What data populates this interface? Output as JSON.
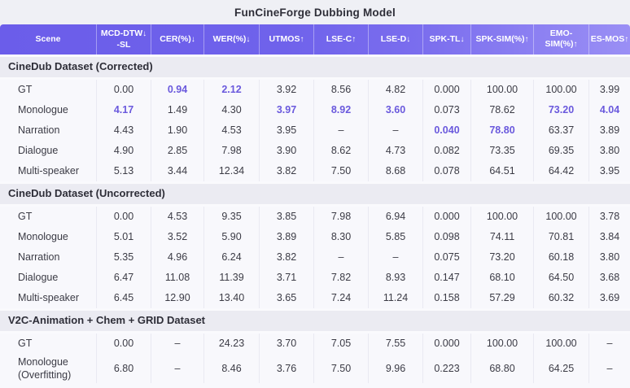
{
  "title": "FunCineForge Dubbing Model",
  "colors": {
    "accent_purple": "#6c5ce7",
    "header_gradient_start": "#6b5dea",
    "header_gradient_end": "#9a8ff5",
    "highlight_value": "#6a59dd",
    "body_text": "#3b3b45",
    "section_band": "#ebebf2",
    "row_bg": "#f8f8fc"
  },
  "chart_data": {
    "type": "table",
    "title": "FunCineForge Dubbing Model",
    "columns": [
      {
        "label": "Scene",
        "sublabel": "",
        "sort_arrow": ""
      },
      {
        "label": "MCD-DTW",
        "sublabel": "-SL",
        "sort_arrow": "↓"
      },
      {
        "label": "CER(%)",
        "sublabel": "",
        "sort_arrow": "↓"
      },
      {
        "label": "WER(%)",
        "sublabel": "",
        "sort_arrow": "↓"
      },
      {
        "label": "UTMOS",
        "sublabel": "",
        "sort_arrow": "↑"
      },
      {
        "label": "LSE-C",
        "sublabel": "",
        "sort_arrow": "↑"
      },
      {
        "label": "LSE-D",
        "sublabel": "",
        "sort_arrow": "↓"
      },
      {
        "label": "SPK-TL",
        "sublabel": "",
        "sort_arrow": "↓"
      },
      {
        "label": "SPK-SIM(%)",
        "sublabel": "",
        "sort_arrow": "↑"
      },
      {
        "label": "EMO-SIM(%)",
        "sublabel": "",
        "sort_arrow": "↑"
      },
      {
        "label": "ES-MOS",
        "sublabel": "",
        "sort_arrow": "↑"
      }
    ],
    "sections": [
      {
        "header": "CineDub Dataset (Corrected)",
        "rows": [
          {
            "scene": "GT",
            "values": [
              "0.00",
              "0.94",
              "2.12",
              "3.92",
              "8.56",
              "4.82",
              "0.000",
              "100.00",
              "100.00",
              "3.99"
            ],
            "highlight": [
              1,
              2
            ]
          },
          {
            "scene": "Monologue",
            "values": [
              "4.17",
              "1.49",
              "4.30",
              "3.97",
              "8.92",
              "3.60",
              "0.073",
              "78.62",
              "73.20",
              "4.04"
            ],
            "highlight": [
              0,
              3,
              4,
              5,
              8,
              9
            ]
          },
          {
            "scene": "Narration",
            "values": [
              "4.43",
              "1.90",
              "4.53",
              "3.95",
              "–",
              "–",
              "0.040",
              "78.80",
              "63.37",
              "3.89"
            ],
            "highlight": [
              6,
              7
            ]
          },
          {
            "scene": "Dialogue",
            "values": [
              "4.90",
              "2.85",
              "7.98",
              "3.90",
              "8.62",
              "4.73",
              "0.082",
              "73.35",
              "69.35",
              "3.80"
            ],
            "highlight": []
          },
          {
            "scene": "Multi-speaker",
            "values": [
              "5.13",
              "3.44",
              "12.34",
              "3.82",
              "7.50",
              "8.68",
              "0.078",
              "64.51",
              "64.42",
              "3.95"
            ],
            "highlight": []
          }
        ]
      },
      {
        "header": "CineDub Dataset (Uncorrected)",
        "rows": [
          {
            "scene": "GT",
            "values": [
              "0.00",
              "4.53",
              "9.35",
              "3.85",
              "7.98",
              "6.94",
              "0.000",
              "100.00",
              "100.00",
              "3.78"
            ],
            "highlight": []
          },
          {
            "scene": "Monologue",
            "values": [
              "5.01",
              "3.52",
              "5.90",
              "3.89",
              "8.30",
              "5.85",
              "0.098",
              "74.11",
              "70.81",
              "3.84"
            ],
            "highlight": []
          },
          {
            "scene": "Narration",
            "values": [
              "5.35",
              "4.96",
              "6.24",
              "3.82",
              "–",
              "–",
              "0.075",
              "73.20",
              "60.18",
              "3.80"
            ],
            "highlight": []
          },
          {
            "scene": "Dialogue",
            "values": [
              "6.47",
              "11.08",
              "11.39",
              "3.71",
              "7.82",
              "8.93",
              "0.147",
              "68.10",
              "64.50",
              "3.68"
            ],
            "highlight": []
          },
          {
            "scene": "Multi-speaker",
            "values": [
              "6.45",
              "12.90",
              "13.40",
              "3.65",
              "7.24",
              "11.24",
              "0.158",
              "57.29",
              "60.32",
              "3.69"
            ],
            "highlight": []
          }
        ]
      },
      {
        "header": "V2C-Animation + Chem + GRID Dataset",
        "rows": [
          {
            "scene": "GT",
            "values": [
              "0.00",
              "–",
              "24.23",
              "3.70",
              "7.05",
              "7.55",
              "0.000",
              "100.00",
              "100.00",
              "–"
            ],
            "highlight": []
          },
          {
            "scene": "Monologue (Overfitting)",
            "values": [
              "6.80",
              "–",
              "8.46",
              "3.76",
              "7.50",
              "9.96",
              "0.223",
              "68.80",
              "64.25",
              "–"
            ],
            "highlight": []
          }
        ]
      }
    ]
  }
}
